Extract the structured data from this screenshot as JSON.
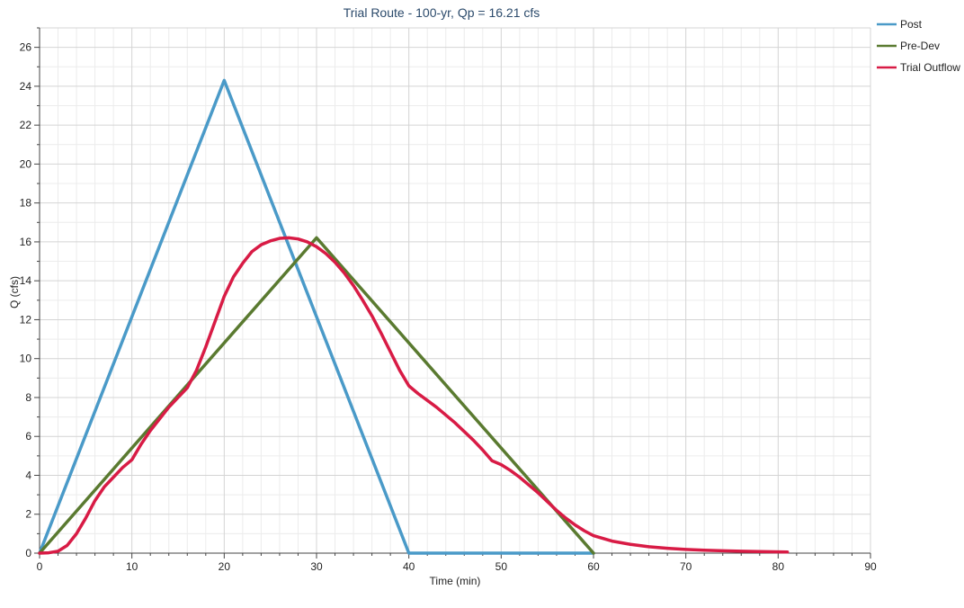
{
  "chart_data": {
    "type": "line",
    "title": "Trial Route - 100-yr, Qp = 16.21 cfs",
    "xlabel": "Time (min)",
    "ylabel": "Q (cfs)",
    "xlim": [
      0,
      90
    ],
    "ylim": [
      0,
      27
    ],
    "xticks": [
      0,
      10,
      20,
      30,
      40,
      50,
      60,
      70,
      80,
      90
    ],
    "yticks": [
      0,
      2,
      4,
      6,
      8,
      10,
      12,
      14,
      16,
      18,
      20,
      22,
      24,
      26
    ],
    "grid": true,
    "legend_position": "top-right",
    "series": [
      {
        "name": "Post",
        "color": "#4a9ac8",
        "points": [
          [
            0,
            0
          ],
          [
            20,
            24.3
          ],
          [
            40,
            0
          ],
          [
            60,
            0
          ]
        ]
      },
      {
        "name": "Pre-Dev",
        "color": "#5a7a30",
        "points": [
          [
            0,
            0
          ],
          [
            30,
            16.21
          ],
          [
            60,
            0
          ]
        ]
      },
      {
        "name": "Trial Outflow",
        "color": "#d81b45",
        "points": [
          [
            0,
            0
          ],
          [
            1,
            0.02
          ],
          [
            2,
            0.1
          ],
          [
            3,
            0.4
          ],
          [
            4,
            1.0
          ],
          [
            5,
            1.8
          ],
          [
            6,
            2.7
          ],
          [
            7,
            3.4
          ],
          [
            8,
            3.9
          ],
          [
            9,
            4.4
          ],
          [
            10,
            4.8
          ],
          [
            11,
            5.6
          ],
          [
            12,
            6.3
          ],
          [
            13,
            6.9
          ],
          [
            14,
            7.5
          ],
          [
            15,
            8.0
          ],
          [
            16,
            8.5
          ],
          [
            17,
            9.4
          ],
          [
            18,
            10.6
          ],
          [
            19,
            11.9
          ],
          [
            20,
            13.2
          ],
          [
            21,
            14.2
          ],
          [
            22,
            14.9
          ],
          [
            23,
            15.5
          ],
          [
            24,
            15.85
          ],
          [
            25,
            16.05
          ],
          [
            26,
            16.18
          ],
          [
            27,
            16.21
          ],
          [
            28,
            16.15
          ],
          [
            29,
            16.0
          ],
          [
            30,
            15.75
          ],
          [
            31,
            15.4
          ],
          [
            32,
            14.95
          ],
          [
            33,
            14.4
          ],
          [
            34,
            13.75
          ],
          [
            35,
            13.0
          ],
          [
            36,
            12.2
          ],
          [
            37,
            11.3
          ],
          [
            38,
            10.35
          ],
          [
            39,
            9.4
          ],
          [
            40,
            8.6
          ],
          [
            41,
            8.2
          ],
          [
            42,
            7.85
          ],
          [
            43,
            7.5
          ],
          [
            44,
            7.1
          ],
          [
            45,
            6.7
          ],
          [
            46,
            6.25
          ],
          [
            47,
            5.8
          ],
          [
            48,
            5.3
          ],
          [
            49,
            4.75
          ],
          [
            50,
            4.55
          ],
          [
            51,
            4.25
          ],
          [
            52,
            3.9
          ],
          [
            53,
            3.5
          ],
          [
            54,
            3.1
          ],
          [
            55,
            2.65
          ],
          [
            56,
            2.2
          ],
          [
            57,
            1.8
          ],
          [
            58,
            1.45
          ],
          [
            59,
            1.15
          ],
          [
            60,
            0.9
          ],
          [
            62,
            0.62
          ],
          [
            64,
            0.45
          ],
          [
            66,
            0.33
          ],
          [
            68,
            0.25
          ],
          [
            70,
            0.19
          ],
          [
            72,
            0.15
          ],
          [
            74,
            0.12
          ],
          [
            76,
            0.1
          ],
          [
            78,
            0.08
          ],
          [
            81,
            0.06
          ]
        ]
      }
    ]
  }
}
